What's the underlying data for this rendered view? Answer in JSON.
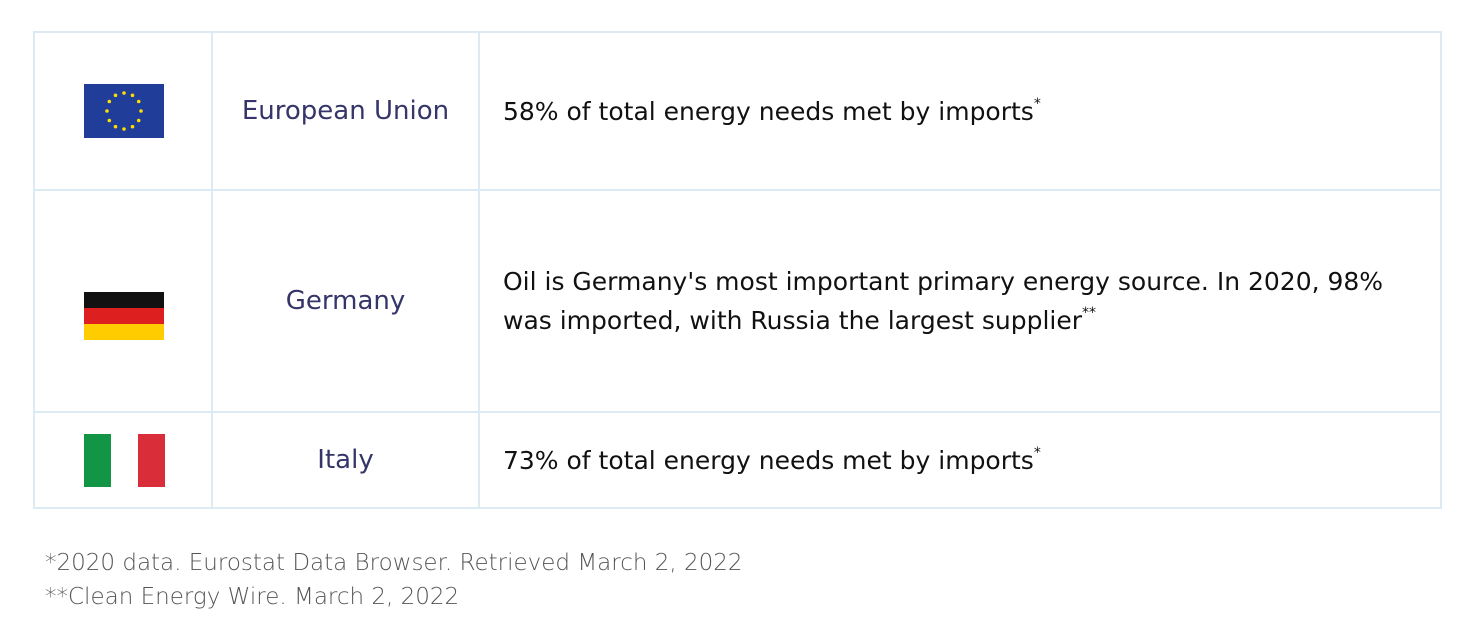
{
  "table": {
    "rows": [
      {
        "country": "European Union",
        "text": "58% of total energy needs met by imports",
        "note": "*"
      },
      {
        "country": "Germany",
        "text": "Oil is Germany's most important primary energy source. In 2020, 98% was imported, with Russia the largest supplier",
        "note": "**"
      },
      {
        "country": "Italy",
        "text": "73% of total energy needs met by imports",
        "note": "*"
      }
    ]
  },
  "footnotes": [
    "*2020 data. Eurostat Data Browser. Retrieved March 2, 2022",
    "**Clean Energy Wire. March 2, 2022"
  ]
}
